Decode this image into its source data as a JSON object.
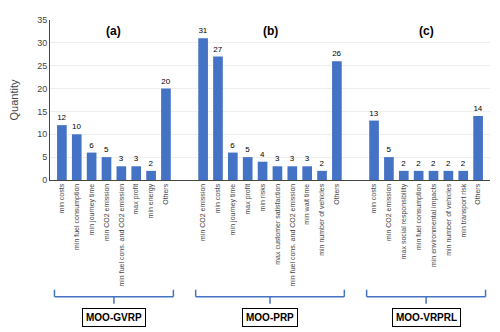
{
  "chart_data": {
    "type": "bar",
    "ylabel": "Quantity",
    "groups": [
      {
        "label": "MOO-GVRP",
        "panel": "(a)",
        "categories": [
          "min costs",
          "min fuel consumption",
          "min journey time",
          "min CO2 emission",
          "min fuel cons. and CO2 emission",
          "max profit",
          "min energy",
          "Others"
        ],
        "values": [
          12,
          10,
          6,
          5,
          3,
          3,
          2,
          20
        ]
      },
      {
        "label": "MOO-PRP",
        "panel": "(b)",
        "categories": [
          "min CO2 emission",
          "min costs",
          "min journey time",
          "max profit",
          "min risks",
          "max customer satisfaction",
          "min fuel cons. and CO2 emission",
          "min wait time",
          "min number of vehicles",
          "Others"
        ],
        "values": [
          31,
          27,
          6,
          5,
          4,
          3,
          3,
          3,
          2,
          26
        ]
      },
      {
        "label": "MOO-VRPRL",
        "panel": "(c)",
        "categories": [
          "min costs",
          "min CO2 emission",
          "max social responsibility",
          "min fuel consumption",
          "min environmental impacts",
          "min number of vehicles",
          "min transport risk",
          "Others"
        ],
        "values": [
          13,
          5,
          2,
          2,
          2,
          2,
          2,
          14
        ]
      }
    ],
    "color": "#4472C4",
    "ylim": [
      0,
      35
    ],
    "yticks": [
      0,
      5,
      10,
      15,
      20,
      25,
      30,
      35
    ],
    "grid": true,
    "data_labels": true
  }
}
